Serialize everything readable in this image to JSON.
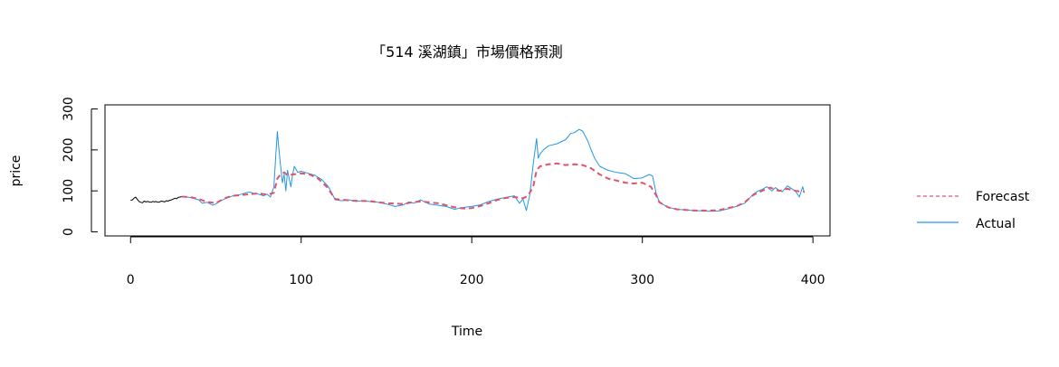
{
  "chart_data": {
    "type": "line",
    "title": "「514 溪湖鎮」市場價格預測",
    "xlabel": "Time",
    "ylabel": "price",
    "xlim": [
      -15,
      410
    ],
    "ylim": [
      -10,
      310
    ],
    "x_ticks": [
      0,
      100,
      200,
      300,
      400
    ],
    "y_ticks": [
      0,
      100,
      200,
      300
    ],
    "grid": false,
    "legend_position": "right",
    "legend": [
      "Forecast",
      "Actual"
    ],
    "colors": {
      "history": "#000000",
      "forecast": "#DF536B",
      "actual": "#2297E6"
    },
    "series": [
      {
        "key": "history",
        "style": "solid",
        "points": [
          [
            0,
            77
          ],
          [
            1,
            78
          ],
          [
            2,
            82
          ],
          [
            3,
            85
          ],
          [
            4,
            79
          ],
          [
            5,
            74
          ],
          [
            6,
            72
          ],
          [
            7,
            71
          ],
          [
            8,
            75
          ],
          [
            9,
            73
          ],
          [
            10,
            74
          ],
          [
            11,
            73
          ],
          [
            12,
            72
          ],
          [
            13,
            74
          ],
          [
            14,
            73
          ],
          [
            15,
            74
          ],
          [
            16,
            72
          ],
          [
            17,
            73
          ],
          [
            18,
            75
          ],
          [
            19,
            74
          ],
          [
            20,
            73
          ],
          [
            21,
            76
          ],
          [
            22,
            75
          ],
          [
            23,
            77
          ],
          [
            24,
            78
          ],
          [
            25,
            80
          ],
          [
            26,
            82
          ],
          [
            27,
            81
          ],
          [
            28,
            84
          ],
          [
            29,
            85
          ],
          [
            30,
            86
          ]
        ]
      },
      {
        "key": "forecast",
        "name": "Forecast",
        "style": "dashed",
        "points": [
          [
            30,
            86
          ],
          [
            35,
            85
          ],
          [
            40,
            80
          ],
          [
            45,
            73
          ],
          [
            50,
            70
          ],
          [
            55,
            82
          ],
          [
            60,
            88
          ],
          [
            65,
            90
          ],
          [
            70,
            92
          ],
          [
            75,
            94
          ],
          [
            80,
            91
          ],
          [
            84,
            95
          ],
          [
            86,
            130
          ],
          [
            88,
            140
          ],
          [
            90,
            145
          ],
          [
            92,
            138
          ],
          [
            95,
            140
          ],
          [
            100,
            143
          ],
          [
            105,
            140
          ],
          [
            110,
            130
          ],
          [
            115,
            110
          ],
          [
            120,
            80
          ],
          [
            125,
            78
          ],
          [
            130,
            76
          ],
          [
            140,
            75
          ],
          [
            150,
            70
          ],
          [
            160,
            68
          ],
          [
            165,
            72
          ],
          [
            170,
            74
          ],
          [
            180,
            70
          ],
          [
            190,
            60
          ],
          [
            195,
            57
          ],
          [
            200,
            58
          ],
          [
            205,
            63
          ],
          [
            210,
            70
          ],
          [
            215,
            78
          ],
          [
            220,
            83
          ],
          [
            225,
            85
          ],
          [
            230,
            82
          ],
          [
            233,
            88
          ],
          [
            236,
            110
          ],
          [
            238,
            150
          ],
          [
            240,
            160
          ],
          [
            245,
            165
          ],
          [
            250,
            167
          ],
          [
            255,
            163
          ],
          [
            260,
            165
          ],
          [
            265,
            163
          ],
          [
            270,
            155
          ],
          [
            275,
            140
          ],
          [
            280,
            130
          ],
          [
            285,
            125
          ],
          [
            290,
            120
          ],
          [
            295,
            118
          ],
          [
            300,
            120
          ],
          [
            305,
            110
          ],
          [
            308,
            90
          ],
          [
            310,
            72
          ],
          [
            315,
            60
          ],
          [
            320,
            55
          ],
          [
            330,
            52
          ],
          [
            340,
            52
          ],
          [
            345,
            53
          ],
          [
            350,
            58
          ],
          [
            355,
            62
          ],
          [
            360,
            72
          ],
          [
            365,
            90
          ],
          [
            370,
            100
          ],
          [
            375,
            108
          ],
          [
            380,
            100
          ],
          [
            385,
            105
          ],
          [
            390,
            100
          ],
          [
            395,
            98
          ]
        ]
      },
      {
        "key": "actual",
        "name": "Actual",
        "style": "solid",
        "points": [
          [
            30,
            86
          ],
          [
            35,
            84
          ],
          [
            40,
            78
          ],
          [
            42,
            70
          ],
          [
            45,
            72
          ],
          [
            48,
            65
          ],
          [
            50,
            68
          ],
          [
            52,
            74
          ],
          [
            55,
            80
          ],
          [
            58,
            85
          ],
          [
            60,
            88
          ],
          [
            63,
            90
          ],
          [
            65,
            92
          ],
          [
            68,
            96
          ],
          [
            70,
            97
          ],
          [
            72,
            94
          ],
          [
            75,
            92
          ],
          [
            78,
            88
          ],
          [
            80,
            92
          ],
          [
            82,
            85
          ],
          [
            84,
            110
          ],
          [
            85,
            180
          ],
          [
            86,
            245
          ],
          [
            87,
            200
          ],
          [
            88,
            160
          ],
          [
            89,
            120
          ],
          [
            90,
            140
          ],
          [
            91,
            100
          ],
          [
            92,
            150
          ],
          [
            93,
            130
          ],
          [
            94,
            110
          ],
          [
            95,
            140
          ],
          [
            96,
            160
          ],
          [
            98,
            145
          ],
          [
            100,
            148
          ],
          [
            104,
            143
          ],
          [
            108,
            138
          ],
          [
            112,
            128
          ],
          [
            116,
            110
          ],
          [
            120,
            78
          ],
          [
            124,
            76
          ],
          [
            128,
            78
          ],
          [
            132,
            74
          ],
          [
            136,
            76
          ],
          [
            140,
            74
          ],
          [
            145,
            72
          ],
          [
            150,
            68
          ],
          [
            155,
            62
          ],
          [
            160,
            66
          ],
          [
            163,
            73
          ],
          [
            166,
            70
          ],
          [
            170,
            78
          ],
          [
            175,
            68
          ],
          [
            180,
            65
          ],
          [
            185,
            62
          ],
          [
            190,
            55
          ],
          [
            193,
            58
          ],
          [
            196,
            60
          ],
          [
            200,
            62
          ],
          [
            205,
            66
          ],
          [
            210,
            74
          ],
          [
            215,
            80
          ],
          [
            220,
            84
          ],
          [
            225,
            88
          ],
          [
            228,
            70
          ],
          [
            230,
            80
          ],
          [
            232,
            52
          ],
          [
            234,
            90
          ],
          [
            236,
            165
          ],
          [
            238,
            228
          ],
          [
            239,
            180
          ],
          [
            240,
            190
          ],
          [
            242,
            200
          ],
          [
            245,
            210
          ],
          [
            250,
            215
          ],
          [
            255,
            225
          ],
          [
            258,
            240
          ],
          [
            260,
            242
          ],
          [
            263,
            250
          ],
          [
            265,
            246
          ],
          [
            268,
            222
          ],
          [
            270,
            200
          ],
          [
            272,
            180
          ],
          [
            275,
            160
          ],
          [
            280,
            150
          ],
          [
            285,
            145
          ],
          [
            290,
            142
          ],
          [
            295,
            130
          ],
          [
            300,
            132
          ],
          [
            304,
            140
          ],
          [
            306,
            136
          ],
          [
            308,
            95
          ],
          [
            310,
            72
          ],
          [
            315,
            60
          ],
          [
            320,
            55
          ],
          [
            330,
            52
          ],
          [
            340,
            50
          ],
          [
            345,
            51
          ],
          [
            350,
            56
          ],
          [
            355,
            62
          ],
          [
            360,
            70
          ],
          [
            365,
            92
          ],
          [
            368,
            100
          ],
          [
            370,
            103
          ],
          [
            373,
            110
          ],
          [
            376,
            100
          ],
          [
            378,
            108
          ],
          [
            380,
            102
          ],
          [
            382,
            98
          ],
          [
            385,
            112
          ],
          [
            388,
            104
          ],
          [
            390,
            98
          ],
          [
            392,
            85
          ],
          [
            394,
            110
          ],
          [
            395,
            95
          ]
        ]
      }
    ]
  }
}
